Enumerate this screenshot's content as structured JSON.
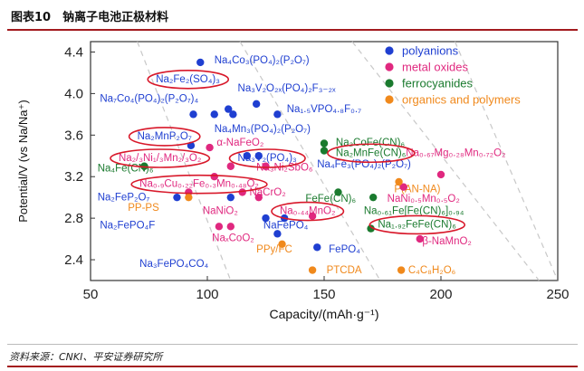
{
  "figure": {
    "title": "图表10　钠离子电池正极材料",
    "source": "资料来源：CNKI、平安证券研究所"
  },
  "chart_data": {
    "type": "scatter",
    "xlabel": "Capacity/(mAh·g⁻¹)",
    "ylabel": "Potential/V (vs Na/Na⁺)",
    "xlim": [
      50,
      250
    ],
    "ylim": [
      2.2,
      4.5
    ],
    "xticks": [
      50,
      100,
      150,
      200,
      250
    ],
    "yticks": [
      2.4,
      2.8,
      3.2,
      3.6,
      4.0,
      4.4
    ],
    "grid": false,
    "legend_position": "top-right",
    "series": [
      {
        "name": "polyanions",
        "color": "#1f3fd1",
        "points": [
          {
            "x": 97,
            "y": 4.3,
            "label": "Na4Co3(PO4)2(P2O7)"
          },
          {
            "x": 94,
            "y": 3.8,
            "label": "Na7Co4(PO4)2(P2O7)4"
          },
          {
            "x": 103,
            "y": 3.8,
            "label": "Na2Fe2(SO4)3"
          },
          {
            "x": 109,
            "y": 3.85,
            "label": "Na3V2O2x(PO4)2F3-2x"
          },
          {
            "x": 111,
            "y": 3.8,
            "label": "Na4Mn3(PO4)2(P2O7)"
          },
          {
            "x": 121,
            "y": 3.9,
            "label": "Na1.5VPO4.8F0.7"
          },
          {
            "x": 130,
            "y": 3.8,
            "label": "Na2MnP2O7"
          },
          {
            "x": 93,
            "y": 3.5,
            "label": "Na3V2(PO4)3"
          },
          {
            "x": 117,
            "y": 3.4,
            "label": "Na2FePO4F"
          },
          {
            "x": 122,
            "y": 3.4,
            "label": "NaFePO4"
          },
          {
            "x": 87,
            "y": 3.0,
            "label": "Na2FeP2O7"
          },
          {
            "x": 110,
            "y": 3.0,
            "label": "Na3FePO4CO4"
          },
          {
            "x": 125,
            "y": 2.8,
            "label": "Na3FePO4CO4"
          },
          {
            "x": 130,
            "y": 2.65,
            "label": "Na3FePO4CO4"
          },
          {
            "x": 133,
            "y": 2.8,
            "label": "NaFePO4"
          },
          {
            "x": 147,
            "y": 2.52,
            "label": "FePO4"
          }
        ]
      },
      {
        "name": "metal oxides",
        "color": "#e0287f",
        "points": [
          {
            "x": 101,
            "y": 3.48,
            "label": "α-NaFeO2"
          },
          {
            "x": 110,
            "y": 3.3,
            "label": "Na2/3Ni1/3Mn2/3O2"
          },
          {
            "x": 125,
            "y": 3.3,
            "label": "Na3Ni2SbO6"
          },
          {
            "x": 103,
            "y": 3.2,
            "label": "Na0.9Cu0.22Fe0.3Mn0.48O2"
          },
          {
            "x": 92,
            "y": 3.05,
            "label": "NaCrO2"
          },
          {
            "x": 115,
            "y": 3.05,
            "label": "NaCrO2"
          },
          {
            "x": 122,
            "y": 3.0,
            "label": "NaCrO2"
          },
          {
            "x": 105,
            "y": 2.72,
            "label": "NaNiO2"
          },
          {
            "x": 110,
            "y": 2.72,
            "label": "NaxCoO2"
          },
          {
            "x": 145,
            "y": 2.82,
            "label": "Na0.44MnO2"
          },
          {
            "x": 184,
            "y": 3.1,
            "label": "NaNi0.5Mn0.5O2"
          },
          {
            "x": 191,
            "y": 2.6,
            "label": "β-NaMnO2"
          },
          {
            "x": 200,
            "y": 3.22,
            "label": "Na0.67Mg0.28Mn0.72O2"
          }
        ]
      },
      {
        "name": "ferrocyanides",
        "color": "#1a7a2e",
        "points": [
          {
            "x": 73,
            "y": 3.3,
            "label": "Na4Fe(CN)6"
          },
          {
            "x": 150,
            "y": 3.52,
            "label": "Na2CoFe(CN)6"
          },
          {
            "x": 150,
            "y": 3.45,
            "label": "Na2MnFe(CN)6"
          },
          {
            "x": 156,
            "y": 3.05,
            "label": "FeFe(CN)6"
          },
          {
            "x": 171,
            "y": 3.0,
            "label": "Na0.61Fe[Fe(CN)6]0.94"
          },
          {
            "x": 170,
            "y": 2.7,
            "label": "Na1.92FeFe(CN)6"
          }
        ]
      },
      {
        "name": "organics and polymers",
        "color": "#f0891c",
        "points": [
          {
            "x": 92,
            "y": 3.0,
            "label": "PP-PS"
          },
          {
            "x": 132,
            "y": 2.55,
            "label": "PPy/FC"
          },
          {
            "x": 145,
            "y": 2.3,
            "label": "PTCDA"
          },
          {
            "x": 183,
            "y": 2.3,
            "label": "C4C8H2O6"
          },
          {
            "x": 182,
            "y": 3.15,
            "label": "P(AN-NA)"
          }
        ]
      }
    ],
    "annotations": [
      {
        "text": "Na₄Co₃(PO₄)₂(P₂O₇)",
        "x": 103,
        "y": 4.29,
        "color": "#1f3fd1"
      },
      {
        "text": "Na₂Fe₂(SO₄)₃",
        "x": 78,
        "y": 4.11,
        "color": "#1f3fd1"
      },
      {
        "text": "Na₃V₂O₂ₓ(PO₄)₂F₃₋₂ₓ",
        "x": 113,
        "y": 4.02,
        "color": "#1f3fd1"
      },
      {
        "text": "Na₇Co₄(PO₄)₂(P₂O₇)₄",
        "x": 54,
        "y": 3.92,
        "color": "#1f3fd1"
      },
      {
        "text": "Na₁.₅VPO₄.₈F₀.₇",
        "x": 134,
        "y": 3.82,
        "color": "#1f3fd1"
      },
      {
        "text": "Na₄Mn₃(PO₄)₂(P₂O₇)",
        "x": 103,
        "y": 3.63,
        "color": "#1f3fd1"
      },
      {
        "text": "Na₂MnP₂O₇",
        "x": 70,
        "y": 3.56,
        "color": "#1f3fd1"
      },
      {
        "text": "α-NaFeO₂",
        "x": 104,
        "y": 3.5,
        "color": "#e0287f"
      },
      {
        "text": "Na₂CoFe(CN)₆",
        "x": 155,
        "y": 3.5,
        "color": "#1a7a2e"
      },
      {
        "text": "Na₀.₆₇Mg₀.₂₈Mn₀.₇₂O₂",
        "x": 185,
        "y": 3.4,
        "color": "#e0287f"
      },
      {
        "text": "Na₂/₃Ni₁/₃Mn₂/₃O₂",
        "x": 62,
        "y": 3.35,
        "color": "#e0287f"
      },
      {
        "text": "Na₃V₂(PO₄)₃",
        "x": 113,
        "y": 3.35,
        "color": "#1f3fd1"
      },
      {
        "text": "Na₂MnFe(CN)₆",
        "x": 155,
        "y": 3.4,
        "color": "#1a7a2e"
      },
      {
        "text": "Na₄Fe(CN)₆",
        "x": 53,
        "y": 3.25,
        "color": "#1a7a2e"
      },
      {
        "text": "Na₃Ni₂SbO₆",
        "x": 121,
        "y": 3.26,
        "color": "#e0287f"
      },
      {
        "text": "Na₄Fe₃(PO₄)₂(P₂O₇)",
        "x": 147,
        "y": 3.29,
        "color": "#1f3fd1"
      },
      {
        "text": "Na₀.₉Cu₀.₂₂Fe₀.₃Mn₀.₄₈O₂",
        "x": 71,
        "y": 3.1,
        "color": "#e0287f"
      },
      {
        "text": "P(AN-NA)",
        "x": 180,
        "y": 3.05,
        "color": "#f0891c"
      },
      {
        "text": "Na₂FeP₂O₇",
        "x": 53,
        "y": 2.97,
        "color": "#1f3fd1"
      },
      {
        "text": "NaCrO₂",
        "x": 118,
        "y": 3.02,
        "color": "#e0287f"
      },
      {
        "text": "FeFe(CN)₆",
        "x": 142,
        "y": 2.96,
        "color": "#1a7a2e"
      },
      {
        "text": "NaNi₀.₅Mn₀.₅O₂",
        "x": 177,
        "y": 2.96,
        "color": "#e0287f"
      },
      {
        "text": "PP-PS",
        "x": 66,
        "y": 2.87,
        "color": "#f0891c"
      },
      {
        "text": "NaNiO₂",
        "x": 98,
        "y": 2.84,
        "color": "#e0287f"
      },
      {
        "text": "Na₀.₄₄MnO₂",
        "x": 131,
        "y": 2.84,
        "color": "#e0287f"
      },
      {
        "text": "Na₀.₆₁Fe[Fe(CN)₆]₀.₉₄",
        "x": 167,
        "y": 2.84,
        "color": "#1a7a2e"
      },
      {
        "text": "Na₂FePO₄F",
        "x": 54,
        "y": 2.7,
        "color": "#1f3fd1"
      },
      {
        "text": "NaFePO₄",
        "x": 124,
        "y": 2.7,
        "color": "#1f3fd1"
      },
      {
        "text": "Na₁.₉₂FeFe(CN)₆",
        "x": 173,
        "y": 2.71,
        "color": "#1a7a2e"
      },
      {
        "text": "NaₓCoO₂",
        "x": 102,
        "y": 2.58,
        "color": "#e0287f"
      },
      {
        "text": "PPy/FC",
        "x": 121,
        "y": 2.47,
        "color": "#f0891c"
      },
      {
        "text": "FePO₄",
        "x": 152,
        "y": 2.47,
        "color": "#1f3fd1"
      },
      {
        "text": "β-NaMnO₂",
        "x": 192,
        "y": 2.55,
        "color": "#e0287f"
      },
      {
        "text": "Na₃FePO₄CO₄",
        "x": 71,
        "y": 2.33,
        "color": "#1f3fd1"
      },
      {
        "text": "PTCDA",
        "x": 151,
        "y": 2.27,
        "color": "#f0891c"
      },
      {
        "text": "C₄C₈H₂O₆",
        "x": 186,
        "y": 2.27,
        "color": "#f0891c"
      }
    ],
    "highlighted": [
      "Na₂Fe₂(SO₄)₃",
      "Na₂MnP₂O₇",
      "Na₂/₃Ni₁/₃Mn₂/₃O₂",
      "Na₃V₂(PO₄)₃",
      "Na₂MnFe(CN)₆",
      "Na₀.₉Cu₀.₂₂Fe₀.₃Mn₀.₄₈O₂",
      "Na₀.₄₄MnO₂",
      "Na₁.₉₂FeFe(CN)₆"
    ]
  }
}
